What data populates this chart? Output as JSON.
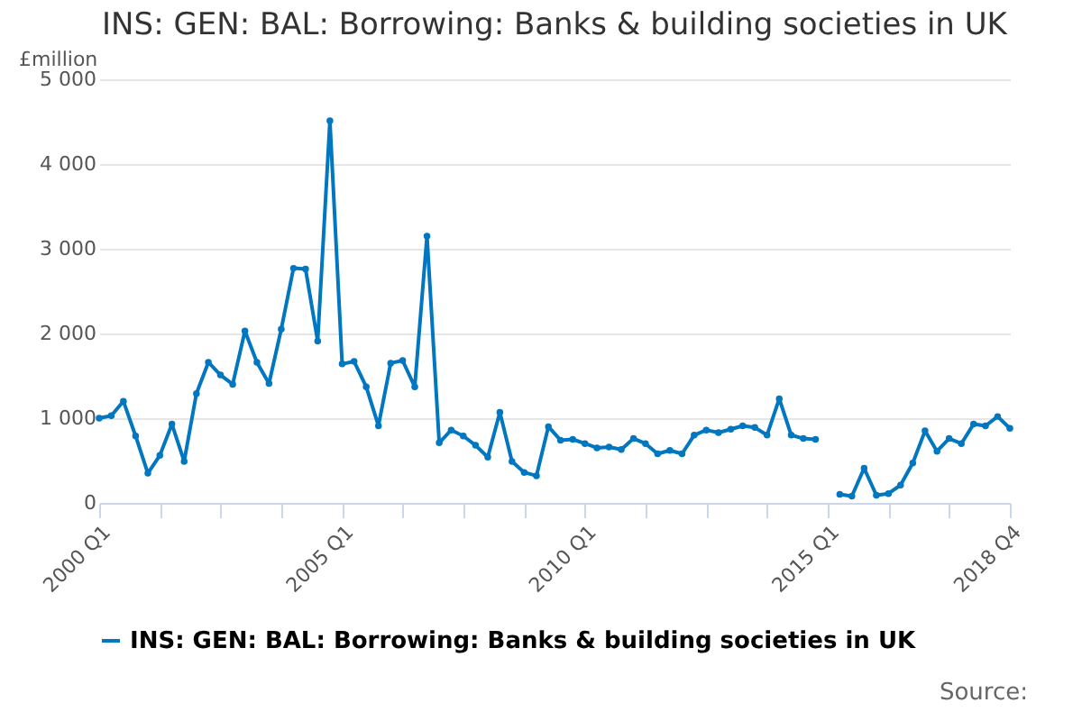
{
  "chart_data": {
    "type": "line",
    "title": "INS: GEN: BAL: Borrowing: Banks & building societies in UK",
    "ylabel": "£million",
    "x": [
      "2000-01",
      "2000-04",
      "2000-07",
      "2000-10",
      "2001-01",
      "2001-04",
      "2001-07",
      "2001-10",
      "2002-01",
      "2002-04",
      "2002-07",
      "2002-10",
      "2003-01",
      "2003-04",
      "2003-07",
      "2003-10",
      "2004-01",
      "2004-04",
      "2004-07",
      "2004-10",
      "2005-01",
      "2005-04",
      "2005-07",
      "2005-10",
      "2006-01",
      "2006-04",
      "2006-07",
      "2006-10",
      "2007-01",
      "2007-04",
      "2007-07",
      "2007-10",
      "2008-01",
      "2008-04",
      "2008-07",
      "2008-10",
      "2009-01",
      "2009-04",
      "2009-07",
      "2009-10",
      "2010-01",
      "2010-04",
      "2010-07",
      "2010-10",
      "2011-01",
      "2011-04",
      "2011-07",
      "2011-10",
      "2012-01",
      "2012-04",
      "2012-07",
      "2012-10",
      "2013-01",
      "2013-04",
      "2013-07",
      "2013-10",
      "2014-01",
      "2014-04",
      "2014-07",
      "2014-10",
      "2015-01",
      "2015-04",
      "2015-07",
      "2015-10",
      "2016-01",
      "2016-04",
      "2016-07",
      "2016-10",
      "2017-01",
      "2017-04",
      "2017-07",
      "2017-10",
      "2018-01",
      "2018-04",
      "2018-07",
      "2018-10"
    ],
    "series": [
      {
        "name": "INS: GEN: BAL: Borrowing: Banks & building societies in UK",
        "color": "#0077c0",
        "values": [
          1000,
          1030,
          1200,
          790,
          350,
          560,
          930,
          490,
          1290,
          1660,
          1510,
          1400,
          2030,
          1660,
          1410,
          2050,
          2770,
          2760,
          1910,
          4510,
          1640,
          1670,
          1370,
          910,
          1650,
          1680,
          1370,
          3150,
          710,
          860,
          790,
          680,
          540,
          1070,
          490,
          360,
          320,
          900,
          740,
          750,
          700,
          650,
          660,
          630,
          760,
          700,
          580,
          620,
          580,
          800,
          860,
          830,
          870,
          910,
          890,
          800,
          1230,
          800,
          760,
          750,
          null,
          100,
          80,
          410,
          90,
          110,
          210,
          470,
          850,
          610,
          760,
          700,
          930,
          910,
          1020,
          880
        ]
      }
    ],
    "xlim": [
      "2000-01",
      "2018-10"
    ],
    "xticks": [
      {
        "value": "2000-01",
        "label": "2000 Q1"
      },
      {
        "value": "2001-04",
        "label": null
      },
      {
        "value": "2002-07",
        "label": null
      },
      {
        "value": "2003-10",
        "label": null
      },
      {
        "value": "2005-01",
        "label": "2005 Q1"
      },
      {
        "value": "2006-04",
        "label": null
      },
      {
        "value": "2007-07",
        "label": null
      },
      {
        "value": "2008-10",
        "label": null
      },
      {
        "value": "2010-01",
        "label": "2010 Q1"
      },
      {
        "value": "2011-04",
        "label": null
      },
      {
        "value": "2012-07",
        "label": null
      },
      {
        "value": "2013-10",
        "label": null
      },
      {
        "value": "2015-01",
        "label": "2015 Q1"
      },
      {
        "value": "2016-04",
        "label": null
      },
      {
        "value": "2017-07",
        "label": null
      },
      {
        "value": "2018-10",
        "label": "2018 Q4"
      }
    ],
    "ylim": [
      0,
      5000
    ],
    "yticks": [
      0,
      {
        "value": 1000,
        "label": "1 000"
      },
      {
        "value": 2000,
        "label": "2 000"
      },
      {
        "value": 3000,
        "label": "3 000"
      },
      {
        "value": 4000,
        "label": "4 000"
      },
      {
        "value": 5000,
        "label": "5 000"
      }
    ],
    "grid": "y",
    "legend": "bottom",
    "marker": "circle",
    "line_style": "solid",
    "annotations": [
      "Source:"
    ]
  }
}
